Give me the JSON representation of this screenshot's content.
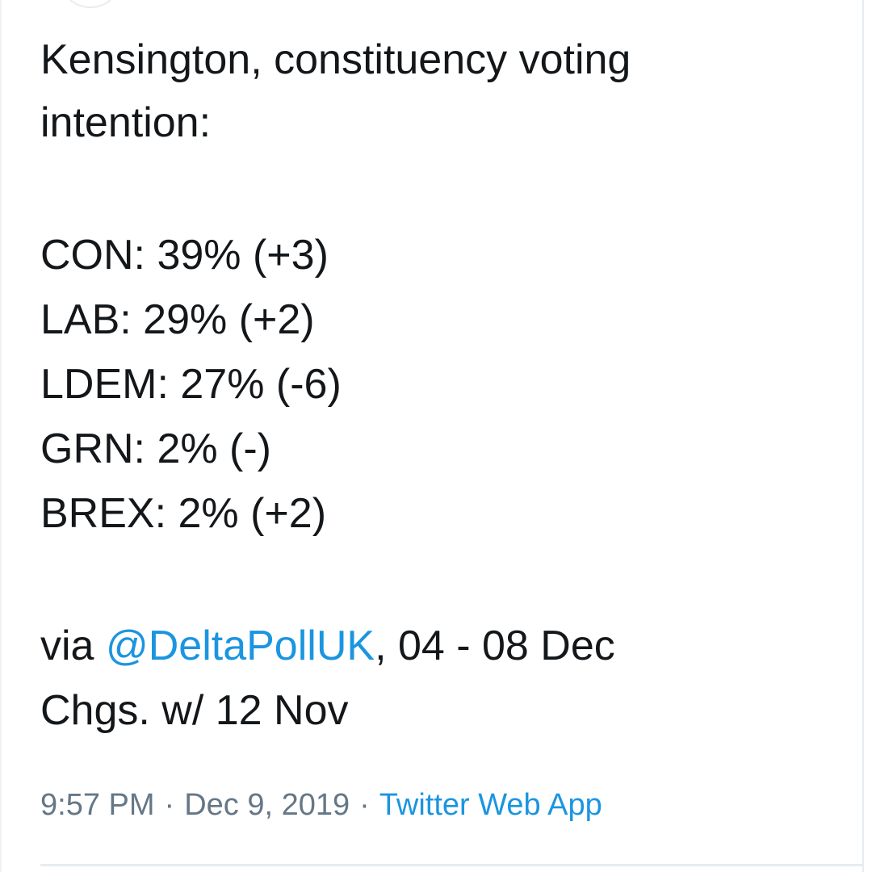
{
  "tweet": {
    "text_lines": [
      "Kensington, constituency voting",
      "intention:"
    ],
    "results": [
      "CON: 39% (+3)",
      "LAB: 29% (+2)",
      "LDEM: 27% (-6)",
      "GRN: 2% (-)",
      "BREX: 2% (+2)"
    ],
    "source": {
      "prefix": "via",
      "mention": "@DeltaPollUK",
      "suffix": ", 04 - 08 Dec"
    },
    "note": "Chgs. w/ 12 Nov",
    "meta": {
      "time": "9:57 PM",
      "separator": "·",
      "date": "Dec 9, 2019",
      "app": "Twitter Web App"
    }
  }
}
